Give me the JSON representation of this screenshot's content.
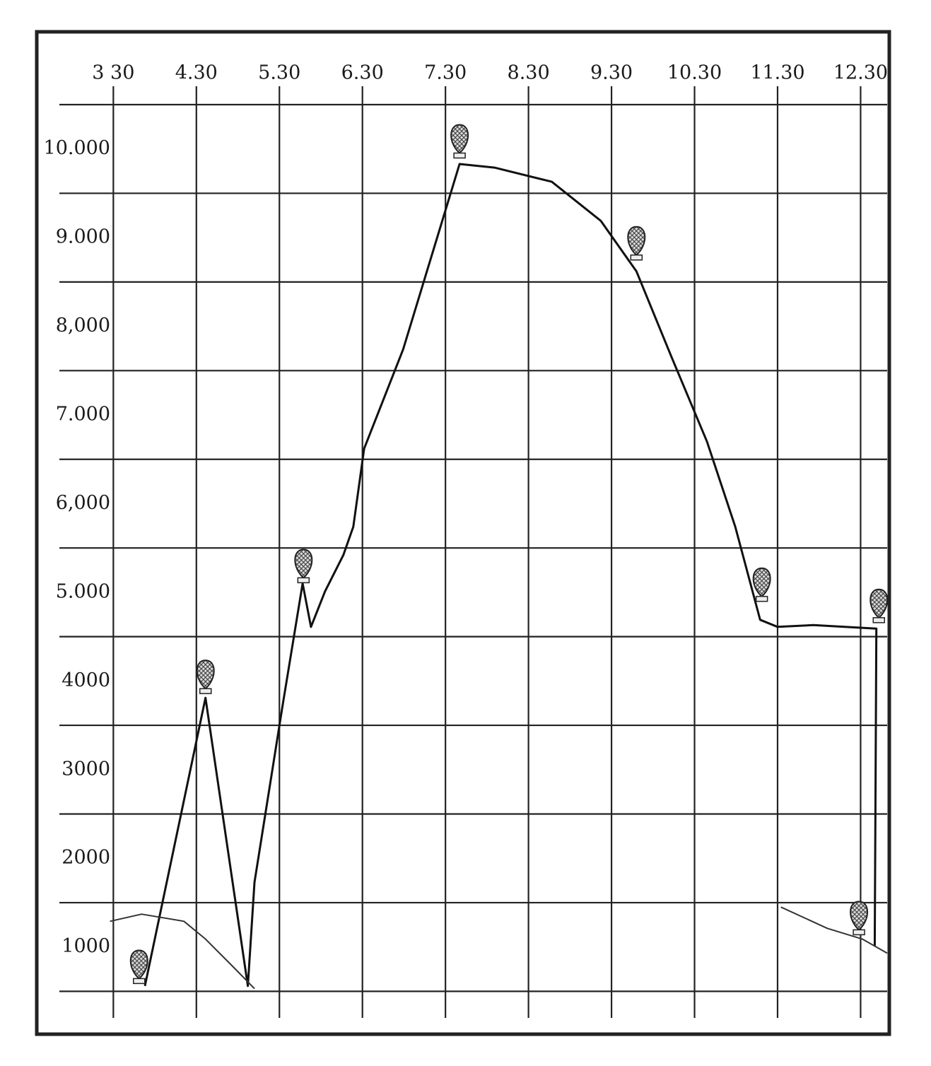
{
  "chart_data": {
    "type": "line",
    "xlim": [
      2.85,
      12.82
    ],
    "ylim": [
      200,
      10500
    ],
    "xticks": [
      {
        "value": 3.5,
        "label": "3 30"
      },
      {
        "value": 4.5,
        "label": "4.30"
      },
      {
        "value": 5.5,
        "label": "5.30"
      },
      {
        "value": 6.5,
        "label": "6.30"
      },
      {
        "value": 7.5,
        "label": "7.30"
      },
      {
        "value": 8.5,
        "label": "8.30"
      },
      {
        "value": 9.5,
        "label": "9.30"
      },
      {
        "value": 10.5,
        "label": "10.30"
      },
      {
        "value": 11.5,
        "label": "11.30"
      },
      {
        "value": 12.5,
        "label": "12.30"
      }
    ],
    "yticks": [
      {
        "value": 10000,
        "label": "10.000"
      },
      {
        "value": 9000,
        "label": "9.000"
      },
      {
        "value": 8000,
        "label": "8,000"
      },
      {
        "value": 7000,
        "label": "7.000"
      },
      {
        "value": 6000,
        "label": "6,000"
      },
      {
        "value": 5000,
        "label": "5.000"
      },
      4000,
      3000,
      2000,
      1000
    ],
    "y_grid_lines": [
      500,
      1500,
      2500,
      3500,
      4500,
      5500,
      6500,
      7500,
      8500,
      9500,
      10500
    ],
    "grid": true,
    "series": [
      {
        "color": "#111",
        "x": [
          3.88,
          4.61,
          5.12,
          5.2,
          5.54,
          5.78,
          5.88,
          6.05,
          6.27,
          6.39,
          6.52,
          6.99,
          7.67,
          8.09,
          8.78,
          9.37,
          9.8,
          10.22,
          10.65,
          10.99,
          11.29,
          11.5,
          11.93,
          12.69,
          12.67
        ],
        "values": [
          560,
          3810,
          560,
          1730,
          3730,
          5100,
          4610,
          5010,
          5420,
          5740,
          6620,
          7740,
          9830,
          9790,
          9630,
          9190,
          8620,
          7660,
          6700,
          5740,
          4690,
          4610,
          4630,
          4590,
          1010
        ]
      },
      {
        "color": "#333",
        "x": [
          3.46,
          3.84,
          4.35,
          4.61,
          4.95,
          5.2
        ],
        "values": [
          1290,
          1370,
          1290,
          1090,
          770,
          530
        ]
      },
      {
        "color": "#333",
        "x": [
          11.54,
          12.1,
          12.52,
          12.82
        ],
        "values": [
          1450,
          1210,
          1090,
          930
        ]
      },
      {
        "color": "#222",
        "marker": "balloon",
        "x": [
          3.81,
          4.61,
          5.79,
          7.67,
          9.8,
          11.31,
          12.72,
          12.48
        ],
        "values": [
          580,
          3850,
          5100,
          9890,
          8740,
          4890,
          4650,
          1130
        ]
      }
    ]
  }
}
